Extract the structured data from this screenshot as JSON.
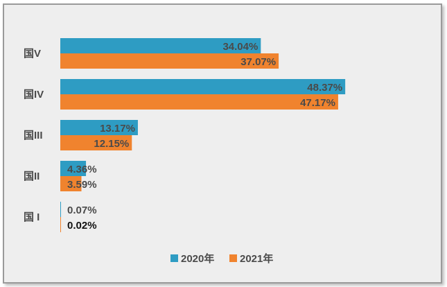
{
  "chart_data": {
    "type": "bar",
    "orientation": "horizontal",
    "categories": [
      "国V",
      "国IV",
      "国III",
      "国II",
      "国 I"
    ],
    "series": [
      {
        "name": "2020年",
        "color": "#2E9CC3",
        "values": [
          34.04,
          48.37,
          13.17,
          4.36,
          0.07
        ]
      },
      {
        "name": "2021年",
        "color": "#F0832E",
        "values": [
          37.07,
          47.17,
          12.15,
          3.59,
          0.02
        ]
      }
    ],
    "value_labels": [
      [
        "34.04%",
        "48.37%",
        "13.17%",
        "4.36%",
        "0.07%"
      ],
      [
        "37.07%",
        "47.17%",
        "12.15%",
        "3.59%",
        "0.02%"
      ]
    ],
    "title": "",
    "xlabel": "",
    "ylabel": "",
    "xlim": [
      0,
      55
    ],
    "grid": false,
    "legend": "bottom"
  }
}
